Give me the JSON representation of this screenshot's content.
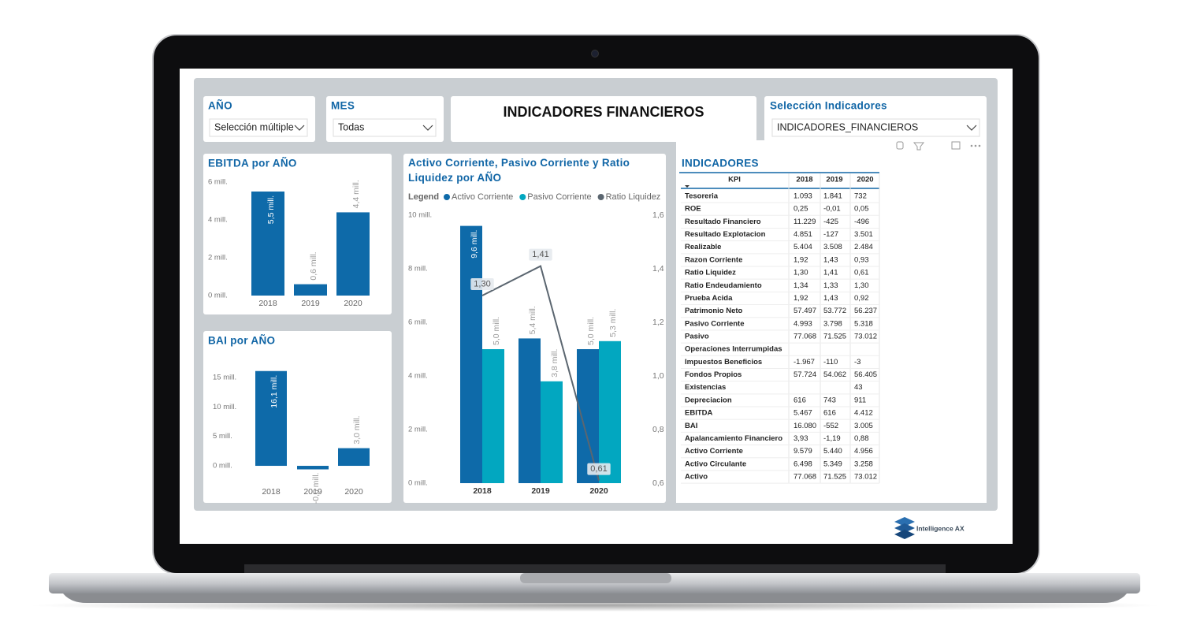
{
  "slicers": [
    {
      "label": "AÑO",
      "value": "Selección múltiple"
    },
    {
      "label": "MES",
      "value": "Todas"
    },
    {
      "label": "Selección Indicadores",
      "value": "INDICADORES_FINANCIEROS"
    }
  ],
  "header": {
    "title": "INDICADORES FINANCIEROS"
  },
  "chart_data": [
    {
      "type": "bar",
      "title": "EBITDA por AÑO",
      "categories": [
        "2018",
        "2019",
        "2020"
      ],
      "values": [
        5.5,
        0.6,
        4.4
      ],
      "value_labels": [
        "5,5 mill.",
        "0,6 mill.",
        "4,4 mill."
      ],
      "color": "#0e6aa9",
      "ylim": [
        0,
        6
      ],
      "yticks": [
        {
          "value": 0,
          "label": "0 mill."
        },
        {
          "value": 2,
          "label": "2 mill."
        },
        {
          "value": 4,
          "label": "4 mill."
        },
        {
          "value": 6,
          "label": "6 mill."
        }
      ]
    },
    {
      "type": "bar",
      "title": "BAI por AÑO",
      "categories": [
        "2018",
        "2019",
        "2020"
      ],
      "values": [
        16.1,
        -0.6,
        3.0
      ],
      "value_labels": [
        "16,1 mill.",
        "-0,6 mill.",
        "3,0 mill."
      ],
      "color": "#0e6aa9",
      "ylim": [
        -1,
        16.2
      ],
      "yticks": [
        {
          "value": 0,
          "label": "0 mill."
        },
        {
          "value": 5,
          "label": "5 mill."
        },
        {
          "value": 10,
          "label": "10 mill."
        },
        {
          "value": 15,
          "label": "15 mill."
        }
      ]
    },
    {
      "type": "combo",
      "title": "Activo Corriente, Pasivo Corriente y Ratio Liquidez por AÑO",
      "legend_title": "Legend",
      "categories": [
        "2018",
        "2019",
        "2020"
      ],
      "series": [
        {
          "name": "Activo Corriente",
          "type": "bar",
          "color": "#0e6aa9",
          "values": [
            9.6,
            5.4,
            5.0
          ],
          "value_labels": [
            "9,6 mill.",
            "5,4 mill.",
            "5,0 mill."
          ]
        },
        {
          "name": "Pasivo Corriente",
          "type": "bar",
          "color": "#02a7c0",
          "values": [
            5.0,
            3.8,
            5.3
          ],
          "value_labels": [
            "5,0 mill.",
            "3,8 mill.",
            "5,3 mill."
          ]
        },
        {
          "name": "Ratio Liquidez",
          "type": "line",
          "axis": "y2",
          "color": "#5b6670",
          "values": [
            1.3,
            1.41,
            0.61
          ],
          "value_labels": [
            "1,30",
            "1,41",
            "0,61"
          ]
        }
      ],
      "ylim": [
        0,
        10
      ],
      "yticks": [
        {
          "value": 0,
          "label": "0 mill."
        },
        {
          "value": 2,
          "label": "2 mill."
        },
        {
          "value": 4,
          "label": "4 mill."
        },
        {
          "value": 6,
          "label": "6 mill."
        },
        {
          "value": 8,
          "label": "8 mill."
        },
        {
          "value": 10,
          "label": "10 mill."
        }
      ],
      "y2lim": [
        0.6,
        1.6
      ],
      "y2ticks": [
        {
          "value": 0.6,
          "label": "0,6"
        },
        {
          "value": 0.8,
          "label": "0,8"
        },
        {
          "value": 1.0,
          "label": "1,0"
        },
        {
          "value": 1.2,
          "label": "1,2"
        },
        {
          "value": 1.4,
          "label": "1,4"
        },
        {
          "value": 1.6,
          "label": "1,6"
        }
      ]
    }
  ],
  "table": {
    "title": "INDICADORES",
    "columns": [
      "KPI",
      "2018",
      "2019",
      "2020"
    ],
    "rows": [
      [
        "Tesoreria",
        "1.093",
        "1.841",
        "732"
      ],
      [
        "ROE",
        "0,25",
        "-0,01",
        "0,05"
      ],
      [
        "Resultado Financiero",
        "11.229",
        "-425",
        "-496"
      ],
      [
        "Resultado Explotacion",
        "4.851",
        "-127",
        "3.501"
      ],
      [
        "Realizable",
        "5.404",
        "3.508",
        "2.484"
      ],
      [
        "Razon Corriente",
        "1,92",
        "1,43",
        "0,93"
      ],
      [
        "Ratio Liquidez",
        "1,30",
        "1,41",
        "0,61"
      ],
      [
        "Ratio Endeudamiento",
        "1,34",
        "1,33",
        "1,30"
      ],
      [
        "Prueba Acida",
        "1,92",
        "1,43",
        "0,92"
      ],
      [
        "Patrimonio Neto",
        "57.497",
        "53.772",
        "56.237"
      ],
      [
        "Pasivo Corriente",
        "4.993",
        "3.798",
        "5.318"
      ],
      [
        "Pasivo",
        "77.068",
        "71.525",
        "73.012"
      ],
      [
        "Operaciones Interrumpidas",
        null,
        null,
        null
      ],
      [
        "Impuestos Beneficios",
        "-1.967",
        "-110",
        "-3"
      ],
      [
        "Fondos Propios",
        "57.724",
        "54.062",
        "56.405"
      ],
      [
        "Existencias",
        null,
        null,
        "43"
      ],
      [
        "Depreciacion",
        "616",
        "743",
        "911"
      ],
      [
        "EBITDA",
        "5.467",
        "616",
        "4.412"
      ],
      [
        "BAI",
        "16.080",
        "-552",
        "3.005"
      ],
      [
        "Apalancamiento Financiero",
        "3,93",
        "-1,19",
        "0,88"
      ],
      [
        "Activo Corriente",
        "9.579",
        "5.440",
        "4.956"
      ],
      [
        "Activo Circulante",
        "6.498",
        "5.349",
        "3.258"
      ],
      [
        "Activo",
        "77.068",
        "71.525",
        "73.012"
      ]
    ]
  },
  "logo": {
    "text": "Intelligence AX"
  }
}
